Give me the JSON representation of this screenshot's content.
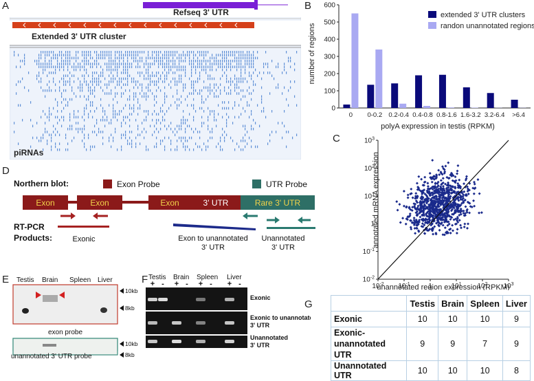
{
  "panel_labels": {
    "a": "A",
    "b": "B",
    "c": "C",
    "d": "D",
    "e": "E",
    "f": "F",
    "g": "G"
  },
  "panel_a": {
    "refseq_label": "Refseq 3' UTR",
    "extended_label": "Extended 3' UTR cluster",
    "pirnas_label": "piRNAs"
  },
  "chart_data": [
    {
      "type": "bar",
      "title": "",
      "categories": [
        "0",
        "0-0.2",
        "0.2-0.4",
        "0.4-0.8",
        "0.8-1.6",
        "1.6-3.2",
        "3.2-6.4",
        ">6.4"
      ],
      "series": [
        {
          "name": "extended 3' UTR clusters",
          "color": "#0a0a7a",
          "values": [
            20,
            135,
            143,
            190,
            193,
            120,
            87,
            48
          ]
        },
        {
          "name": "randon unannotated regions",
          "color": "#a9a9f2",
          "values": [
            550,
            340,
            25,
            12,
            3,
            2,
            1,
            1
          ]
        }
      ],
      "xlabel": "polyA expression in testis (RPKM)",
      "ylabel": "number of regions",
      "ylim": [
        0,
        600
      ],
      "yticks": [
        "0",
        "100",
        "200",
        "300",
        "400",
        "500",
        "600"
      ],
      "legend": "top-right"
    },
    {
      "type": "scatter",
      "xlabel": "unannotated region expression (RPKM)",
      "ylabel": "annotated mRNA expression",
      "xlim": [
        -2,
        3
      ],
      "ylim": [
        -2,
        3
      ],
      "xticks": [
        {
          "b": "10",
          "e": "-2"
        },
        {
          "b": "10",
          "e": "-1"
        },
        {
          "b": "1",
          "e": ""
        },
        {
          "b": "10",
          "e": "1"
        },
        {
          "b": "10",
          "e": "2"
        },
        {
          "b": "10",
          "e": "3"
        }
      ],
      "yticks": [
        {
          "b": "10",
          "e": "-2"
        },
        {
          "b": "10",
          "e": "-1"
        },
        {
          "b": "1",
          "e": ""
        },
        {
          "b": "10",
          "e": "1"
        },
        {
          "b": "10",
          "e": "2"
        },
        {
          "b": "10",
          "e": "3"
        }
      ],
      "color": "#1a2a8c",
      "diagonal": "y = x",
      "point_count": 900
    }
  ],
  "panel_d": {
    "northern_label": "Northern blot:",
    "exon_probe": "Exon Probe",
    "utr_probe": "UTR Probe",
    "boxes": [
      "Exon",
      "Exon",
      "Exon",
      "3' UTR",
      "Rare 3' UTR"
    ],
    "rtpcr_label": "RT-PCR",
    "products_label": "Products:",
    "product_exonic": "Exonic",
    "product_exon_to_utr_1": "Exon to unannotated",
    "product_exon_to_utr_2": "3' UTR",
    "product_unannotated_1": "Unannotated",
    "product_unannotated_2": "3' UTR",
    "colors": {
      "exon": "#8b1a1a",
      "utr": "#2e6f66",
      "arrow_red": "#a52121",
      "arrow_teal": "#2a7a70",
      "bar_blue": "#1c2a8a"
    }
  },
  "panel_e": {
    "lanes": [
      "Testis",
      "Brain",
      "Spleen",
      "Liver"
    ],
    "size_10kb": "10kb",
    "size_8kb": "8kb",
    "exon_probe_label": "exon probe",
    "utr_probe_label": "unannotated 3' UTR probe"
  },
  "panel_f": {
    "lanes": [
      "Testis",
      "Brain",
      "Spleen",
      "Liver"
    ],
    "plus": "+",
    "minus": "-",
    "row_exonic": "Exonic",
    "row_exon_unann_1": "Exonic to unannotated",
    "row_exon_unann_2": "3' UTR",
    "row_unann_1": "Unannotated",
    "row_unann_2": "3' UTR"
  },
  "table_g": {
    "headers": [
      "",
      "Testis",
      "Brain",
      "Spleen",
      "Liver"
    ],
    "rows": [
      {
        "label_1": "Exonic",
        "label_2": "",
        "values": [
          "10",
          "10",
          "10",
          "9"
        ]
      },
      {
        "label_1": "Exonic-",
        "label_2": "unannotated UTR",
        "values": [
          "9",
          "9",
          "7",
          "9"
        ]
      },
      {
        "label_1": "Unannotated UTR",
        "label_2": "",
        "values": [
          "10",
          "10",
          "10",
          "8"
        ]
      }
    ]
  }
}
